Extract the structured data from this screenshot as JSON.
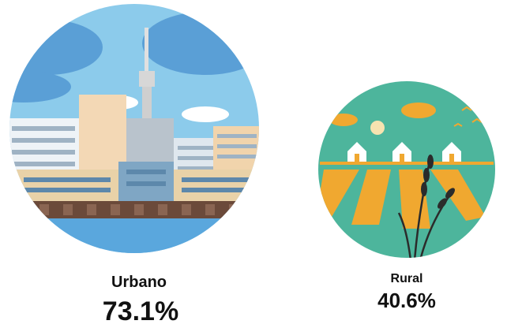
{
  "items": [
    {
      "label": "Urbano",
      "value": "73.1%"
    },
    {
      "label": "Rural",
      "value": "40.6%"
    }
  ]
}
